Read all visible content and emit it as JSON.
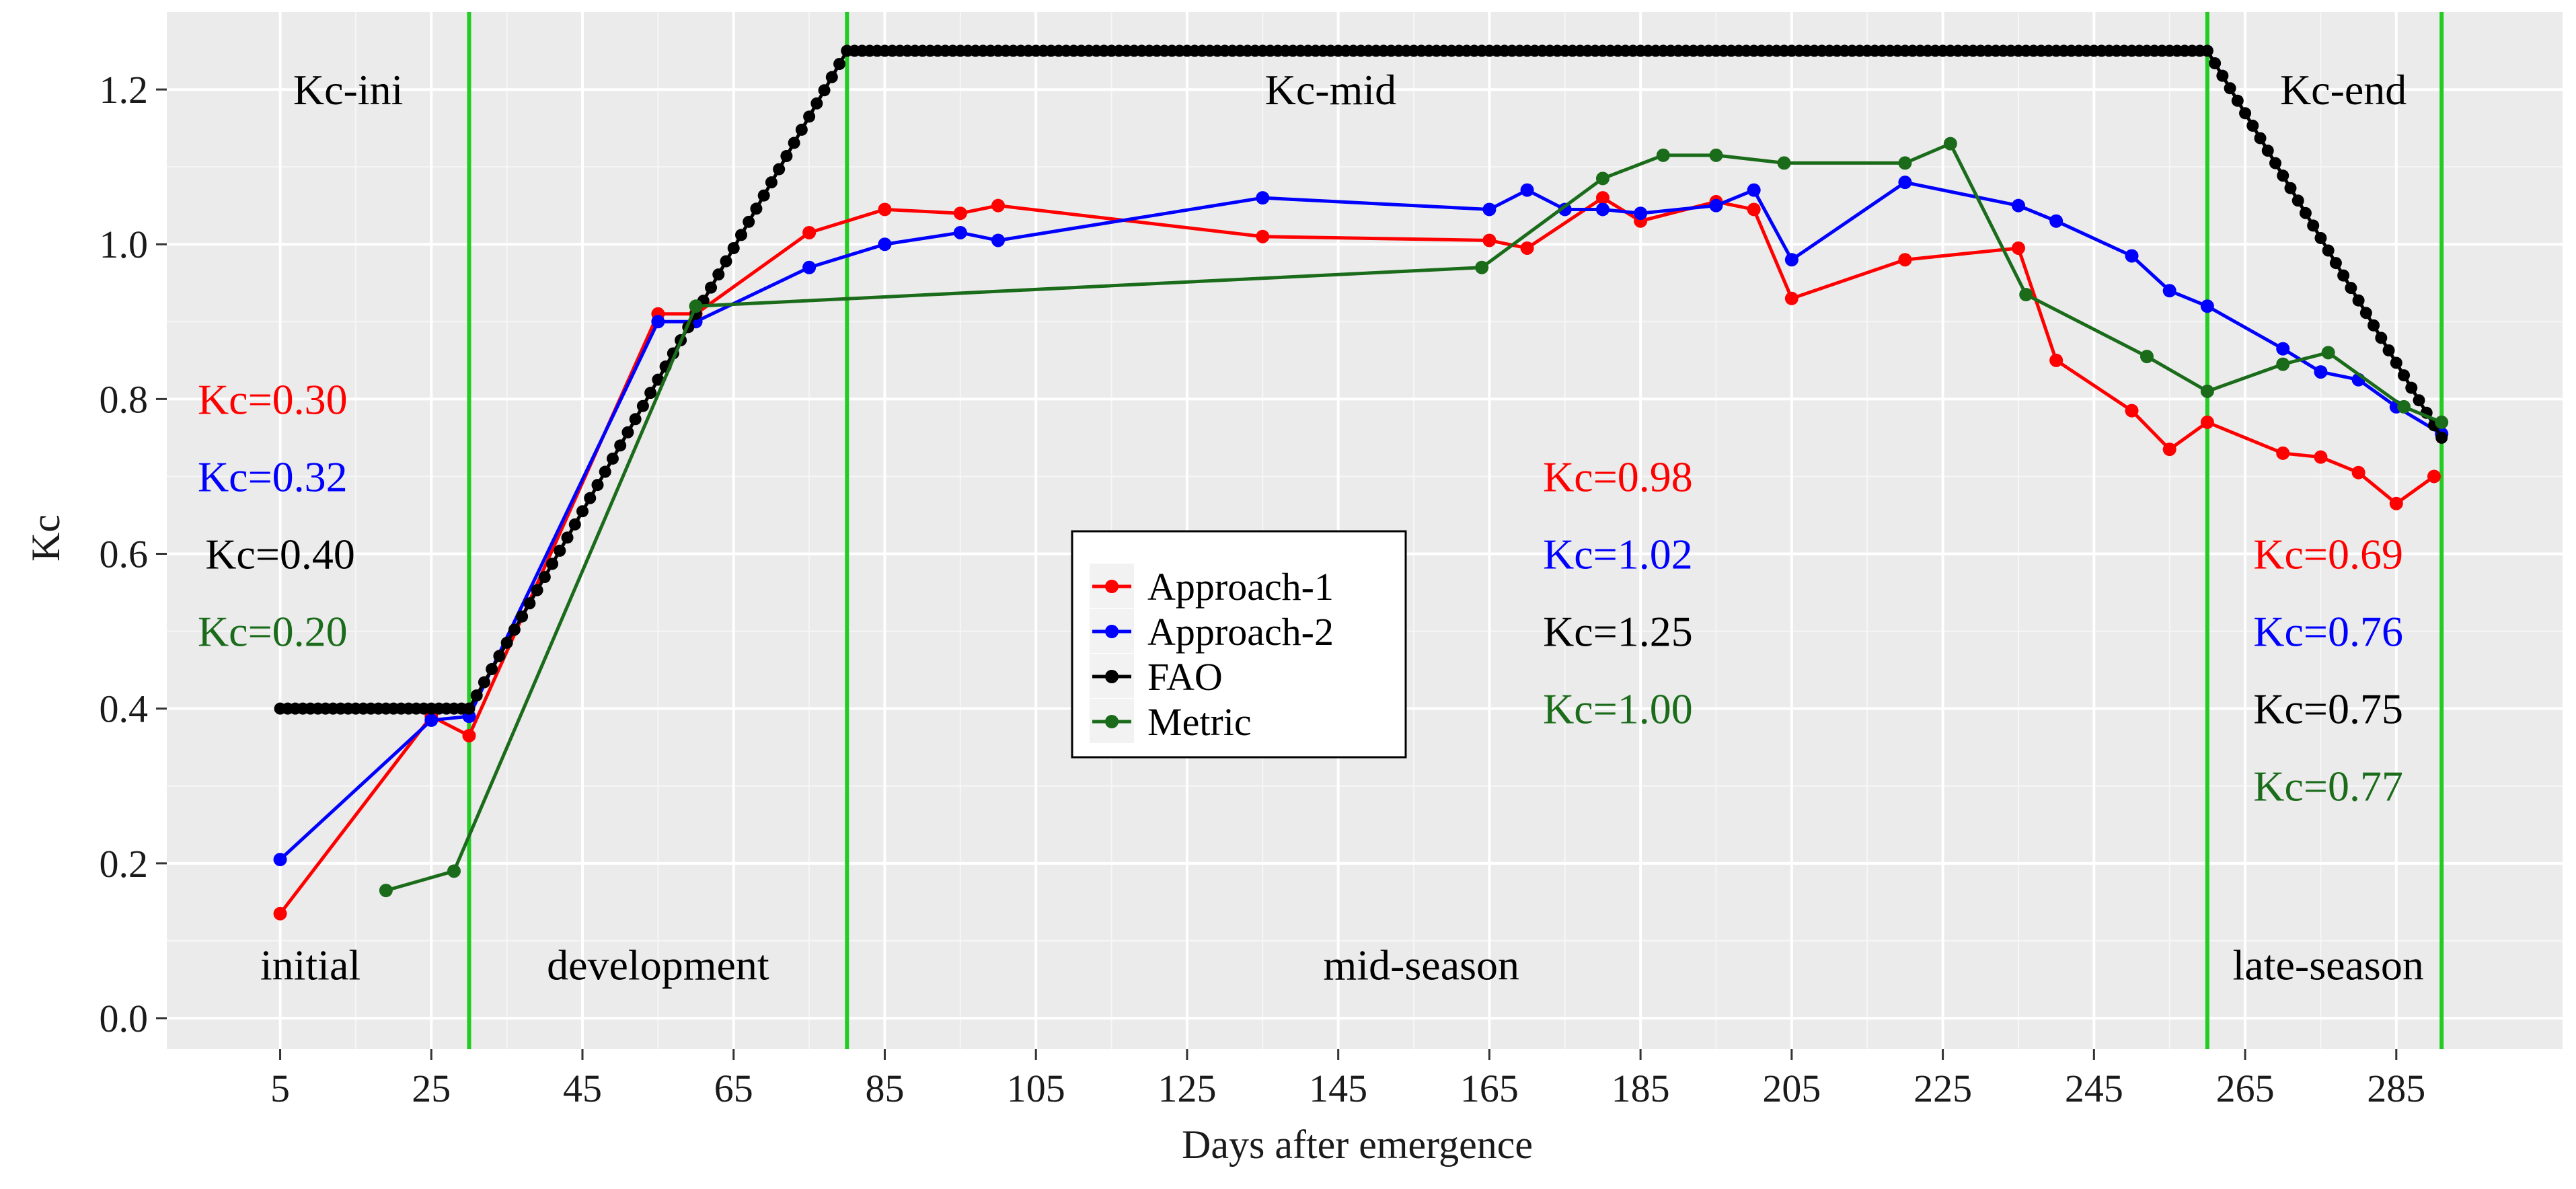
{
  "chart_data": {
    "type": "line",
    "title": "",
    "xlabel": "Days after emergence",
    "ylabel": "Kc",
    "xlim": [
      -10,
      307
    ],
    "ylim": [
      -0.04,
      1.3
    ],
    "xticks": [
      5,
      25,
      45,
      65,
      85,
      105,
      125,
      145,
      165,
      185,
      205,
      225,
      245,
      265,
      285
    ],
    "yticks": [
      0.0,
      0.2,
      0.4,
      0.6,
      0.8,
      1.0,
      1.2
    ],
    "ytick_labels": [
      "0.0",
      "0.2",
      "0.4",
      "0.6",
      "0.8",
      "1.0",
      "1.2"
    ],
    "grid": true,
    "legend_position": "center",
    "stage_boundaries": [
      30,
      80,
      260,
      291
    ],
    "stage_labels": [
      {
        "x": 9,
        "y": 0.05,
        "text": "initial"
      },
      {
        "x": 55,
        "y": 0.05,
        "text": "development"
      },
      {
        "x": 156,
        "y": 0.05,
        "text": "mid-season"
      },
      {
        "x": 276,
        "y": 0.05,
        "text": "late-season"
      }
    ],
    "kc_headers": [
      {
        "x": 14,
        "y": 1.2,
        "text": "Kc-ini"
      },
      {
        "x": 144,
        "y": 1.2,
        "text": "Kc-mid"
      },
      {
        "x": 278,
        "y": 1.2,
        "text": "Kc-end"
      }
    ],
    "kc_values": [
      {
        "x": 4,
        "y": 0.8,
        "text": "Kc=0.30",
        "series": "Approach-1"
      },
      {
        "x": 4,
        "y": 0.7,
        "text": "Kc=0.32",
        "series": "Approach-2"
      },
      {
        "x": 5,
        "y": 0.6,
        "text": "Kc=0.40",
        "series": "FAO"
      },
      {
        "x": 4,
        "y": 0.5,
        "text": "Kc=0.20",
        "series": "Metric"
      },
      {
        "x": 182,
        "y": 0.7,
        "text": "Kc=0.98",
        "series": "Approach-1"
      },
      {
        "x": 182,
        "y": 0.6,
        "text": "Kc=1.02",
        "series": "Approach-2"
      },
      {
        "x": 182,
        "y": 0.5,
        "text": "Kc=1.25",
        "series": "FAO"
      },
      {
        "x": 182,
        "y": 0.4,
        "text": "Kc=1.00",
        "series": "Metric"
      },
      {
        "x": 276,
        "y": 0.6,
        "text": "Kc=0.69",
        "series": "Approach-1"
      },
      {
        "x": 276,
        "y": 0.5,
        "text": "Kc=0.76",
        "series": "Approach-2"
      },
      {
        "x": 276,
        "y": 0.4,
        "text": "Kc=0.75",
        "series": "FAO"
      },
      {
        "x": 276,
        "y": 0.3,
        "text": "Kc=0.77",
        "series": "Metric"
      }
    ],
    "series": [
      {
        "name": "Approach-1",
        "color": "#ff0000",
        "x": [
          5,
          25,
          30,
          55,
          60,
          75,
          85,
          95,
          100,
          135,
          165,
          170,
          180,
          185,
          195,
          200,
          205,
          220,
          235,
          240,
          250,
          255,
          260,
          270,
          275,
          280,
          285,
          290
        ],
        "y": [
          0.135,
          0.39,
          0.365,
          0.91,
          0.91,
          1.015,
          1.045,
          1.04,
          1.05,
          1.01,
          1.005,
          0.995,
          1.06,
          1.03,
          1.055,
          1.045,
          0.93,
          0.98,
          0.995,
          0.85,
          0.785,
          0.735,
          0.77,
          0.73,
          0.725,
          0.705,
          0.665,
          0.7
        ]
      },
      {
        "name": "Approach-2",
        "color": "#0000ff",
        "x": [
          5,
          25,
          30,
          55,
          60,
          75,
          85,
          95,
          100,
          135,
          165,
          170,
          175,
          180,
          185,
          195,
          200,
          205,
          220,
          235,
          240,
          250,
          255,
          260,
          270,
          275,
          280,
          285,
          291
        ],
        "y": [
          0.205,
          0.385,
          0.39,
          0.9,
          0.9,
          0.97,
          1.0,
          1.015,
          1.005,
          1.06,
          1.045,
          1.07,
          1.045,
          1.045,
          1.04,
          1.05,
          1.07,
          0.98,
          1.08,
          1.05,
          1.03,
          0.985,
          0.94,
          0.92,
          0.865,
          0.835,
          0.825,
          0.79,
          0.755
        ]
      },
      {
        "name": "FAO",
        "color": "#000000",
        "x": [
          5,
          30,
          80,
          260,
          291
        ],
        "y": [
          0.4,
          0.4,
          1.25,
          1.25,
          0.75
        ]
      },
      {
        "name": "Metric",
        "color": "#1a6b1a",
        "x": [
          19,
          28,
          60,
          164,
          180,
          188,
          195,
          204,
          220,
          226,
          236,
          252,
          260,
          270,
          276,
          286,
          291
        ],
        "y": [
          0.165,
          0.19,
          0.92,
          0.97,
          1.085,
          1.115,
          1.115,
          1.105,
          1.105,
          1.13,
          0.935,
          0.855,
          0.81,
          0.845,
          0.86,
          0.79,
          0.77
        ]
      }
    ]
  }
}
